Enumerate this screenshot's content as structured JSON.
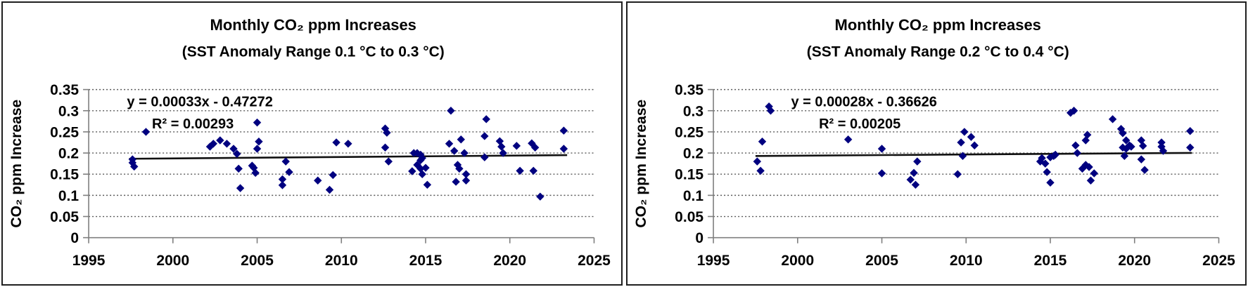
{
  "page": {
    "background": "#ffffff",
    "panel_border_color": "#1f1f1f"
  },
  "chart_data": [
    {
      "type": "scatter",
      "title": "Monthly CO₂ ppm Increases",
      "subtitle": "(SST Anomaly Range 0.1 °C to 0.3 °C)",
      "xlabel": "",
      "ylabel": "CO₂ ppm Increase",
      "xlim": [
        1995,
        2025
      ],
      "ylim": [
        0,
        0.35
      ],
      "xticks": [
        1995,
        2000,
        2005,
        2010,
        2015,
        2020,
        2025
      ],
      "xtick_labels": [
        "1995",
        "2000",
        "2005",
        "2010",
        "2015",
        "2020",
        "2025"
      ],
      "yticks": [
        0,
        0.05,
        0.1,
        0.15,
        0.2,
        0.25,
        0.3,
        0.35
      ],
      "ytick_labels": [
        "0",
        "0.05",
        "0.1",
        "0.15",
        "0.2",
        "0.25",
        "0.3",
        "0.35"
      ],
      "grid": "horizontal-dotted",
      "legend": "none",
      "equation": "y = 0.00033x - 0.47272",
      "r_squared": "R² = 0.00293",
      "trendline": {
        "slope": 0.00033,
        "intercept": -0.47272,
        "x_start": 1997.4,
        "x_end": 2023.4,
        "color": "#111111"
      },
      "marker": {
        "shape": "diamond",
        "color": "#000080"
      },
      "grid_color": "#595959",
      "axis_color": "#7f7f7f",
      "points": [
        [
          1997.6,
          0.185
        ],
        [
          1997.6,
          0.177
        ],
        [
          1997.7,
          0.168
        ],
        [
          1998.4,
          0.25
        ],
        [
          2002.2,
          0.215
        ],
        [
          2002.4,
          0.222
        ],
        [
          2002.8,
          0.23
        ],
        [
          2003.2,
          0.222
        ],
        [
          2003.6,
          0.21
        ],
        [
          2003.8,
          0.198
        ],
        [
          2003.9,
          0.163
        ],
        [
          2004.0,
          0.117
        ],
        [
          2004.7,
          0.17
        ],
        [
          2004.8,
          0.165
        ],
        [
          2004.9,
          0.153
        ],
        [
          2005.0,
          0.272
        ],
        [
          2005.1,
          0.227
        ],
        [
          2005.0,
          0.21
        ],
        [
          2006.5,
          0.138
        ],
        [
          2006.5,
          0.124
        ],
        [
          2006.7,
          0.18
        ],
        [
          2006.9,
          0.155
        ],
        [
          2008.6,
          0.135
        ],
        [
          2009.3,
          0.113
        ],
        [
          2009.5,
          0.148
        ],
        [
          2009.7,
          0.225
        ],
        [
          2010.4,
          0.222
        ],
        [
          2012.6,
          0.258
        ],
        [
          2012.7,
          0.248
        ],
        [
          2012.6,
          0.213
        ],
        [
          2012.8,
          0.18
        ],
        [
          2014.2,
          0.157
        ],
        [
          2014.3,
          0.2
        ],
        [
          2014.5,
          0.2
        ],
        [
          2014.5,
          0.172
        ],
        [
          2014.7,
          0.196
        ],
        [
          2014.7,
          0.183
        ],
        [
          2014.7,
          0.163
        ],
        [
          2014.8,
          0.188
        ],
        [
          2014.8,
          0.15
        ],
        [
          2015.0,
          0.165
        ],
        [
          2015.1,
          0.125
        ],
        [
          2016.4,
          0.222
        ],
        [
          2016.5,
          0.3
        ],
        [
          2016.7,
          0.205
        ],
        [
          2016.8,
          0.132
        ],
        [
          2016.9,
          0.172
        ],
        [
          2017.0,
          0.163
        ],
        [
          2017.1,
          0.232
        ],
        [
          2017.3,
          0.2
        ],
        [
          2017.4,
          0.15
        ],
        [
          2017.4,
          0.135
        ],
        [
          2018.5,
          0.24
        ],
        [
          2018.6,
          0.28
        ],
        [
          2018.5,
          0.19
        ],
        [
          2019.4,
          0.228
        ],
        [
          2019.5,
          0.215
        ],
        [
          2019.6,
          0.2
        ],
        [
          2020.4,
          0.217
        ],
        [
          2020.6,
          0.158
        ],
        [
          2021.3,
          0.223
        ],
        [
          2021.5,
          0.213
        ],
        [
          2021.4,
          0.158
        ],
        [
          2021.8,
          0.097
        ],
        [
          2023.2,
          0.253
        ],
        [
          2023.2,
          0.21
        ]
      ]
    },
    {
      "type": "scatter",
      "title": "Monthly CO₂ ppm Increases",
      "subtitle": "(SST Anomaly Range 0.2 °C to 0.4 °C)",
      "xlabel": "",
      "ylabel": "CO₂ ppm Increase",
      "xlim": [
        1995,
        2025
      ],
      "ylim": [
        0,
        0.35
      ],
      "xticks": [
        1995,
        2000,
        2005,
        2010,
        2015,
        2020,
        2025
      ],
      "xtick_labels": [
        "1995",
        "2000",
        "2005",
        "2010",
        "2015",
        "2020",
        "2025"
      ],
      "yticks": [
        0,
        0.05,
        0.1,
        0.15,
        0.2,
        0.25,
        0.3,
        0.35
      ],
      "ytick_labels": [
        "0",
        "0.05",
        "0.1",
        "0.15",
        "0.2",
        "0.25",
        "0.3",
        "0.35"
      ],
      "grid": "horizontal-dotted",
      "legend": "none",
      "equation": "y = 0.00028x - 0.36626",
      "r_squared": "R² = 0.00205",
      "trendline": {
        "slope": 0.00028,
        "intercept": -0.36626,
        "x_start": 1997.5,
        "x_end": 2023.4,
        "color": "#111111"
      },
      "marker": {
        "shape": "diamond",
        "color": "#000080"
      },
      "grid_color": "#595959",
      "axis_color": "#7f7f7f",
      "points": [
        [
          1997.6,
          0.18
        ],
        [
          1997.8,
          0.158
        ],
        [
          1997.9,
          0.227
        ],
        [
          1998.3,
          0.31
        ],
        [
          1998.4,
          0.3
        ],
        [
          2003.0,
          0.232
        ],
        [
          2005.0,
          0.21
        ],
        [
          2005.0,
          0.152
        ],
        [
          2006.7,
          0.137
        ],
        [
          2006.9,
          0.153
        ],
        [
          2007.0,
          0.125
        ],
        [
          2007.1,
          0.18
        ],
        [
          2009.5,
          0.15
        ],
        [
          2009.7,
          0.225
        ],
        [
          2009.8,
          0.193
        ],
        [
          2009.9,
          0.25
        ],
        [
          2010.3,
          0.238
        ],
        [
          2010.5,
          0.218
        ],
        [
          2014.4,
          0.18
        ],
        [
          2014.5,
          0.188
        ],
        [
          2014.7,
          0.175
        ],
        [
          2014.8,
          0.155
        ],
        [
          2015.0,
          0.19
        ],
        [
          2015.0,
          0.13
        ],
        [
          2015.2,
          0.193
        ],
        [
          2015.3,
          0.196
        ],
        [
          2016.2,
          0.295
        ],
        [
          2016.4,
          0.3
        ],
        [
          2016.5,
          0.218
        ],
        [
          2016.6,
          0.2
        ],
        [
          2016.9,
          0.163
        ],
        [
          2017.1,
          0.23
        ],
        [
          2017.1,
          0.172
        ],
        [
          2017.2,
          0.243
        ],
        [
          2017.3,
          0.167
        ],
        [
          2017.6,
          0.152
        ],
        [
          2017.4,
          0.135
        ],
        [
          2018.7,
          0.28
        ],
        [
          2019.2,
          0.257
        ],
        [
          2019.3,
          0.247
        ],
        [
          2019.5,
          0.23
        ],
        [
          2019.3,
          0.213
        ],
        [
          2019.5,
          0.21
        ],
        [
          2019.8,
          0.215
        ],
        [
          2019.7,
          0.218
        ],
        [
          2019.4,
          0.193
        ],
        [
          2020.4,
          0.23
        ],
        [
          2020.5,
          0.217
        ],
        [
          2020.4,
          0.185
        ],
        [
          2020.6,
          0.16
        ],
        [
          2021.6,
          0.225
        ],
        [
          2021.6,
          0.215
        ],
        [
          2021.7,
          0.205
        ],
        [
          2023.3,
          0.252
        ],
        [
          2023.3,
          0.213
        ]
      ]
    }
  ]
}
